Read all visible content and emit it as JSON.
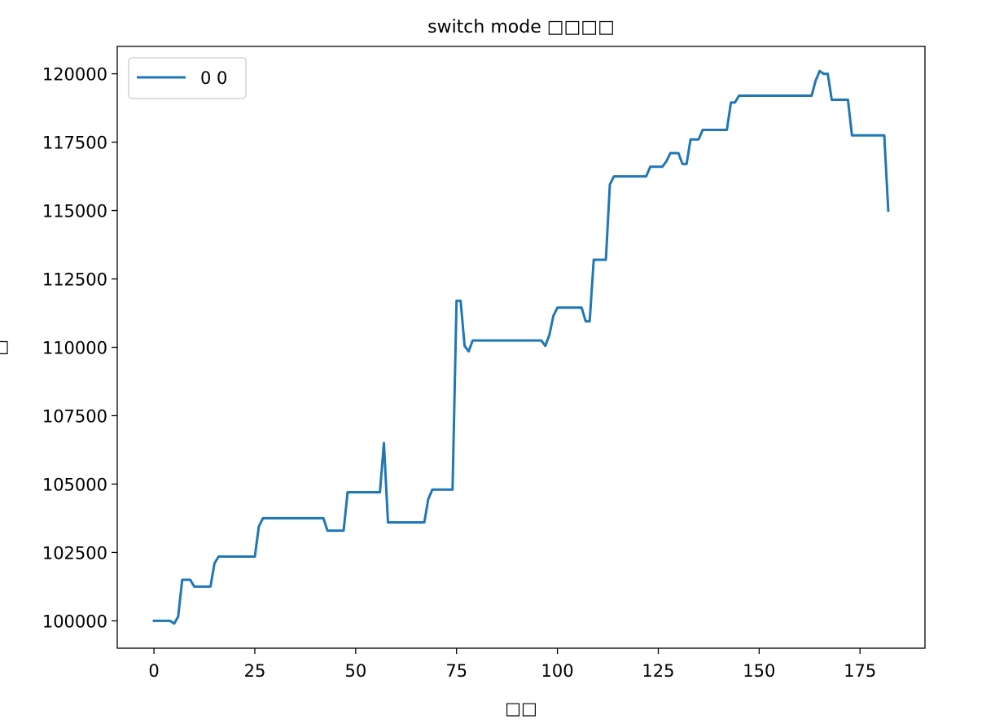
{
  "chart_data": {
    "type": "line",
    "title": "switch mode □□□□",
    "xlabel": "□□",
    "ylabel": "□",
    "xlim": [
      -9.1,
      191.1
    ],
    "ylim": [
      99000,
      121000
    ],
    "xticks": [
      0,
      25,
      50,
      75,
      100,
      125,
      150,
      175
    ],
    "yticks": [
      100000,
      102500,
      105000,
      107500,
      110000,
      112500,
      115000,
      117500,
      120000
    ],
    "grid": false,
    "legend": {
      "position": "top-left",
      "entries": [
        "0 0"
      ]
    },
    "series": [
      {
        "name": "0 0",
        "color": "#1f77b4",
        "points": [
          [
            0,
            100000
          ],
          [
            4,
            100000
          ],
          [
            5,
            99900
          ],
          [
            6,
            100150
          ],
          [
            7,
            101500
          ],
          [
            9,
            101500
          ],
          [
            10,
            101250
          ],
          [
            14,
            101250
          ],
          [
            15,
            102100
          ],
          [
            16,
            102350
          ],
          [
            25,
            102350
          ],
          [
            26,
            103450
          ],
          [
            27,
            103750
          ],
          [
            42,
            103750
          ],
          [
            43,
            103300
          ],
          [
            47,
            103300
          ],
          [
            48,
            104700
          ],
          [
            56,
            104700
          ],
          [
            57,
            106500
          ],
          [
            58,
            103600
          ],
          [
            67,
            103600
          ],
          [
            68,
            104450
          ],
          [
            69,
            104800
          ],
          [
            74,
            104800
          ],
          [
            75,
            111700
          ],
          [
            76,
            111700
          ],
          [
            77,
            110050
          ],
          [
            78,
            109850
          ],
          [
            79,
            110250
          ],
          [
            96,
            110250
          ],
          [
            97,
            110050
          ],
          [
            98,
            110450
          ],
          [
            99,
            111150
          ],
          [
            100,
            111450
          ],
          [
            106,
            111450
          ],
          [
            107,
            110950
          ],
          [
            108,
            110950
          ],
          [
            109,
            113200
          ],
          [
            112,
            113200
          ],
          [
            113,
            115950
          ],
          [
            114,
            116250
          ],
          [
            122,
            116250
          ],
          [
            123,
            116600
          ],
          [
            126,
            116600
          ],
          [
            127,
            116800
          ],
          [
            128,
            117100
          ],
          [
            130,
            117100
          ],
          [
            131,
            116700
          ],
          [
            132,
            116700
          ],
          [
            133,
            117600
          ],
          [
            135,
            117600
          ],
          [
            136,
            117950
          ],
          [
            142,
            117950
          ],
          [
            143,
            118950
          ],
          [
            144,
            118950
          ],
          [
            145,
            119200
          ],
          [
            163,
            119200
          ],
          [
            164,
            119750
          ],
          [
            165,
            120100
          ],
          [
            166,
            120000
          ],
          [
            167,
            120000
          ],
          [
            168,
            119050
          ],
          [
            172,
            119050
          ],
          [
            173,
            117750
          ],
          [
            181,
            117750
          ],
          [
            182,
            115000
          ]
        ]
      }
    ]
  }
}
